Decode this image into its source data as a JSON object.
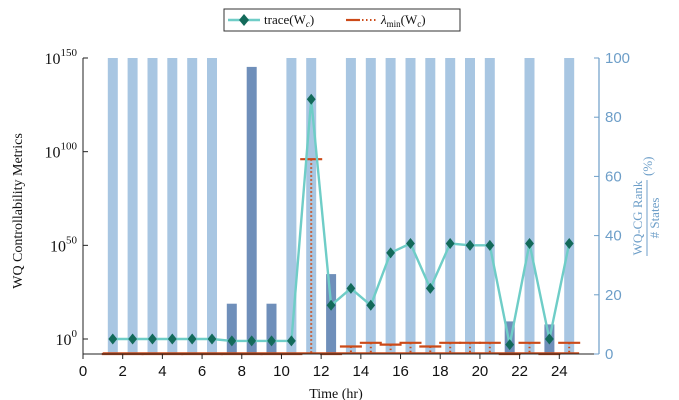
{
  "chart_data": {
    "type": "bar+line",
    "xlabel": "Time (hr)",
    "xticks": [
      0,
      2,
      4,
      6,
      8,
      10,
      12,
      14,
      16,
      18,
      20,
      22,
      24
    ],
    "xlim": [
      0,
      26
    ],
    "ylabel_left": "WQ Controllability Metrics",
    "yscale_left": "log",
    "ylim_left_exponent": [
      -8,
      150
    ],
    "yticks_left": [
      {
        "base": "10",
        "exp": "0",
        "value_exp": 0
      },
      {
        "base": "10",
        "exp": "50",
        "value_exp": 50
      },
      {
        "base": "10",
        "exp": "100",
        "value_exp": 100
      },
      {
        "base": "10",
        "exp": "150",
        "value_exp": 150
      }
    ],
    "ylabel_right": "WQ-CG Rank / # States (%)",
    "ylabel_right_top": "WQ-CG Rank",
    "ylabel_right_bottom": "# States",
    "ylabel_right_unit": "(%)",
    "ylim_right": [
      0,
      100
    ],
    "yticks_right": [
      0,
      20,
      40,
      60,
      80,
      100
    ],
    "colors": {
      "rank_bar_light": "#a8c6e2",
      "rank_bar_dark": "#6f8fba",
      "trace_line": "#6fcdc7",
      "trace_marker": "#136a5a",
      "lambda": "#cc4a18",
      "right_axis": "#6d9ec8"
    },
    "legend": {
      "position": "top-center",
      "entries": [
        {
          "series": "trace",
          "label": "trace(W",
          "sub": "c",
          "suffix": ")"
        },
        {
          "series": "lambda",
          "label": "λ",
          "sub": "min",
          "mid": "(W",
          "sub2": "c",
          "suffix": ")"
        }
      ]
    },
    "series": [
      {
        "name": "trace(Wc)",
        "axis": "left",
        "x": [
          1.5,
          2.5,
          3.5,
          4.5,
          5.5,
          6.5,
          7.5,
          8.5,
          9.5,
          10.5,
          11.5,
          12.5,
          13.5,
          14.5,
          15.5,
          16.5,
          17.5,
          18.5,
          19.5,
          20.5,
          21.5,
          22.5,
          23.5,
          24.5
        ],
        "log10_values": [
          0,
          0,
          0,
          0,
          0,
          0,
          -1,
          -1,
          -1,
          -1,
          128,
          18,
          27,
          18,
          46,
          51,
          27,
          51,
          50,
          50,
          -3,
          51,
          0,
          51
        ]
      },
      {
        "name": "λmin(Wc)",
        "axis": "left",
        "x": [
          1.5,
          2.5,
          3.5,
          4.5,
          5.5,
          6.5,
          7.5,
          8.5,
          9.5,
          10.5,
          11.5,
          12.5,
          13.5,
          14.5,
          15.5,
          16.5,
          17.5,
          18.5,
          19.5,
          20.5,
          21.5,
          22.5,
          23.5,
          24.5
        ],
        "log10_values": [
          -8,
          -8,
          -8,
          -8,
          -8,
          -8,
          -8,
          -8,
          -8,
          -8,
          96,
          -8,
          -4,
          -2,
          -3,
          -2,
          -4,
          -2,
          -2,
          -2,
          -8,
          -2,
          -8,
          -2
        ]
      },
      {
        "name": "WQ-CG Rank / # States (%)",
        "axis": "right",
        "x": [
          1.5,
          2.5,
          3.5,
          4.5,
          5.5,
          6.5,
          7.5,
          8.5,
          9.5,
          10.5,
          11.5,
          12.5,
          13.5,
          14.5,
          15.5,
          16.5,
          17.5,
          18.5,
          19.5,
          20.5,
          21.5,
          22.5,
          23.5,
          24.5
        ],
        "values": [
          100,
          100,
          100,
          100,
          100,
          100,
          17,
          97,
          17,
          100,
          100,
          27,
          100,
          100,
          100,
          100,
          100,
          100,
          100,
          100,
          11,
          100,
          10,
          100
        ],
        "dark": [
          false,
          false,
          false,
          false,
          false,
          false,
          true,
          true,
          true,
          false,
          false,
          true,
          false,
          false,
          false,
          false,
          false,
          false,
          false,
          false,
          true,
          false,
          true,
          false
        ]
      }
    ]
  }
}
